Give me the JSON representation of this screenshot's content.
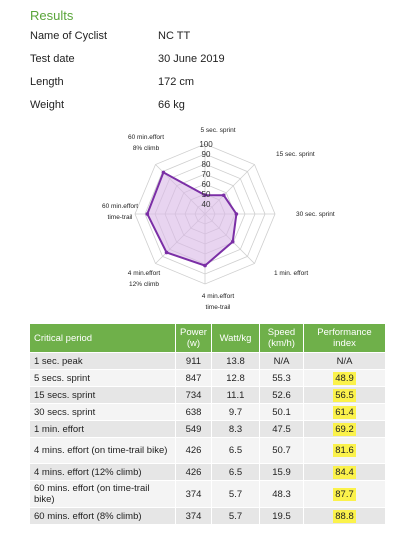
{
  "results": {
    "title": "Results",
    "fields": [
      {
        "label": "Name of Cyclist",
        "value": "NC TT"
      },
      {
        "label": "Test date",
        "value": "30 June 2019"
      },
      {
        "label": "Length",
        "value": "172 cm"
      },
      {
        "label": "Weight",
        "value": "66 kg"
      }
    ]
  },
  "chart_data": {
    "type": "radar",
    "axes": [
      [
        "5 sec. sprint"
      ],
      [
        "15 sec. sprint"
      ],
      [
        "30 sec. sprint"
      ],
      [
        "1 min. effort"
      ],
      [
        "4 min.effort",
        "time-trail"
      ],
      [
        "4 min.effort",
        "12% climb"
      ],
      [
        "60 min.effort",
        "time-trail"
      ],
      [
        "60 min.effort",
        "8% climb"
      ]
    ],
    "values": [
      48.9,
      56.5,
      61.4,
      69.2,
      81.6,
      84.4,
      87.7,
      88.8
    ],
    "range": [
      30,
      100
    ],
    "tick_labels": [
      "40",
      "50",
      "60",
      "70",
      "80",
      "90",
      "100"
    ],
    "line_color": "#7b2fa6",
    "fill_color": "#d8b8e6"
  },
  "table": {
    "headers": [
      "Critical period",
      "Power (w)",
      "Watt/kg",
      "Speed (km/h)",
      "Performance index"
    ],
    "rows": [
      [
        "1 sec. peak",
        "911",
        "13.8",
        "N/A",
        "N/A"
      ],
      [
        "5 secs. sprint",
        "847",
        "12.8",
        "55.3",
        "48.9"
      ],
      [
        "15 secs. sprint",
        "734",
        "11.1",
        "52.6",
        "56.5"
      ],
      [
        "30 secs. sprint",
        "638",
        "9.7",
        "50.1",
        "61.4"
      ],
      [
        "1 min. effort",
        "549",
        "8.3",
        "47.5",
        "69.2"
      ],
      [
        "4 mins. effort (on time-trail bike)",
        "426",
        "6.5",
        "50.7",
        "81.6"
      ],
      [
        "4 mins. effort (12% climb)",
        "426",
        "6.5",
        "15.9",
        "84.4"
      ],
      [
        "60 mins. effort (on time-trail bike)",
        "374",
        "5.7",
        "48.3",
        "87.7"
      ],
      [
        "60 mins. effort (8% climb)",
        "374",
        "5.7",
        "19.5",
        "88.8"
      ]
    ],
    "header_color": "#6fb04a",
    "highlight_color": "#fbf24b"
  }
}
